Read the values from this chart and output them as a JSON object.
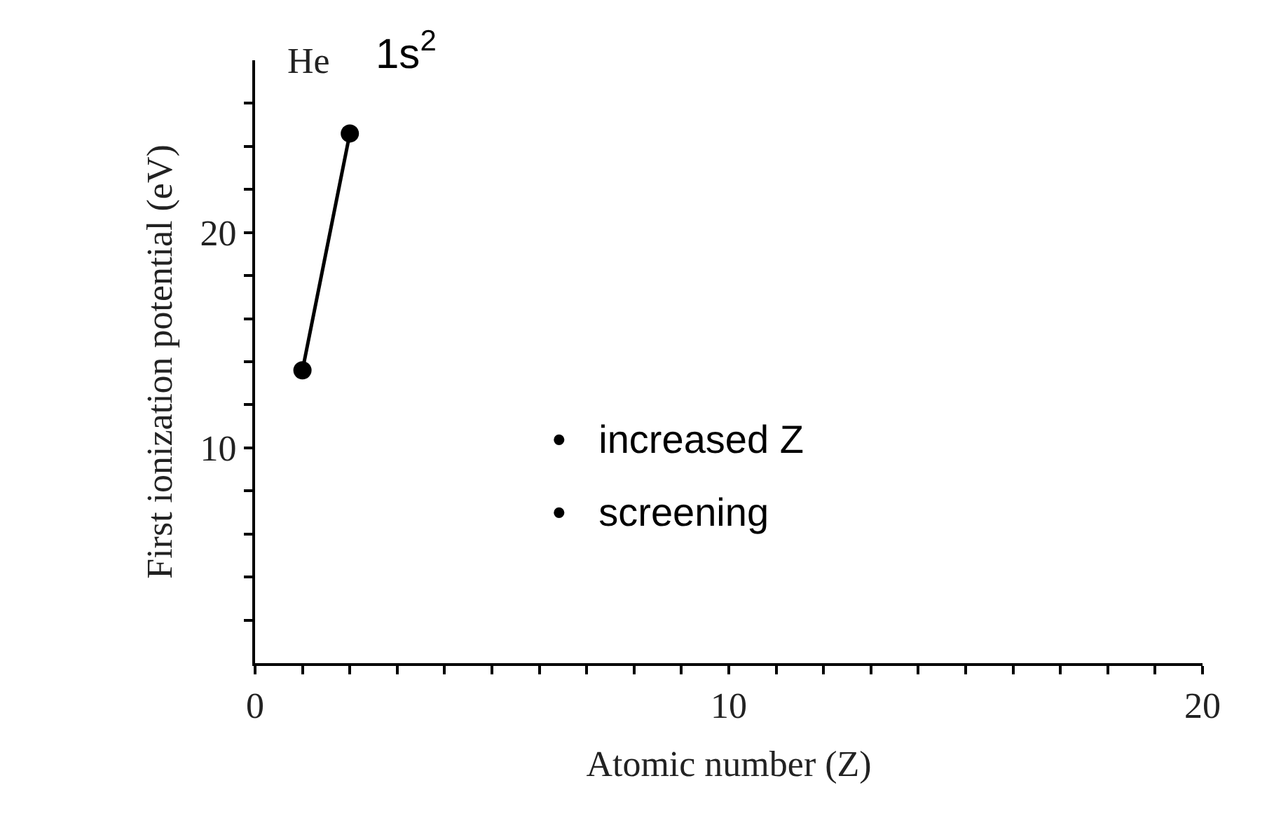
{
  "chart_data": {
    "type": "line",
    "xlabel": "Atomic number (Z)",
    "ylabel": "First ionization potential (eV)",
    "x": [
      1,
      2
    ],
    "series": [
      {
        "color": "#000000",
        "values": [
          13.6,
          24.6
        ]
      }
    ],
    "marker": "circle",
    "line_style": "solid",
    "xlim": [
      0,
      20
    ],
    "ylim": [
      0,
      28
    ],
    "xticks": [
      0,
      {
        "value": 1,
        "label": null
      },
      {
        "value": 2,
        "label": null
      },
      {
        "value": 3,
        "label": null
      },
      {
        "value": 4,
        "label": null
      },
      {
        "value": 5,
        "label": null
      },
      {
        "value": 6,
        "label": null
      },
      {
        "value": 7,
        "label": null
      },
      {
        "value": 8,
        "label": null
      },
      {
        "value": 9,
        "label": null
      },
      10,
      {
        "value": 11,
        "label": null
      },
      {
        "value": 12,
        "label": null
      },
      {
        "value": 13,
        "label": null
      },
      {
        "value": 14,
        "label": null
      },
      {
        "value": 15,
        "label": null
      },
      {
        "value": 16,
        "label": null
      },
      {
        "value": 17,
        "label": null
      },
      {
        "value": 18,
        "label": null
      },
      {
        "value": 19,
        "label": null
      },
      20
    ],
    "yticks": [
      {
        "value": 2,
        "label": null
      },
      {
        "value": 4,
        "label": null
      },
      {
        "value": 6,
        "label": null
      },
      {
        "value": 8,
        "label": null
      },
      10,
      {
        "value": 12,
        "label": null
      },
      {
        "value": 14,
        "label": null
      },
      {
        "value": 16,
        "label": null
      },
      {
        "value": 18,
        "label": null
      },
      20,
      {
        "value": 22,
        "label": null
      },
      {
        "value": 24,
        "label": null
      },
      {
        "value": 26,
        "label": null
      }
    ],
    "annotations": [
      {
        "text": "He",
        "x": 2,
        "y": 24.6
      },
      {
        "text": "1s$^{2}$",
        "x": 2,
        "y": 24.6
      },
      "•   increased Z",
      "•   screening"
    ]
  }
}
